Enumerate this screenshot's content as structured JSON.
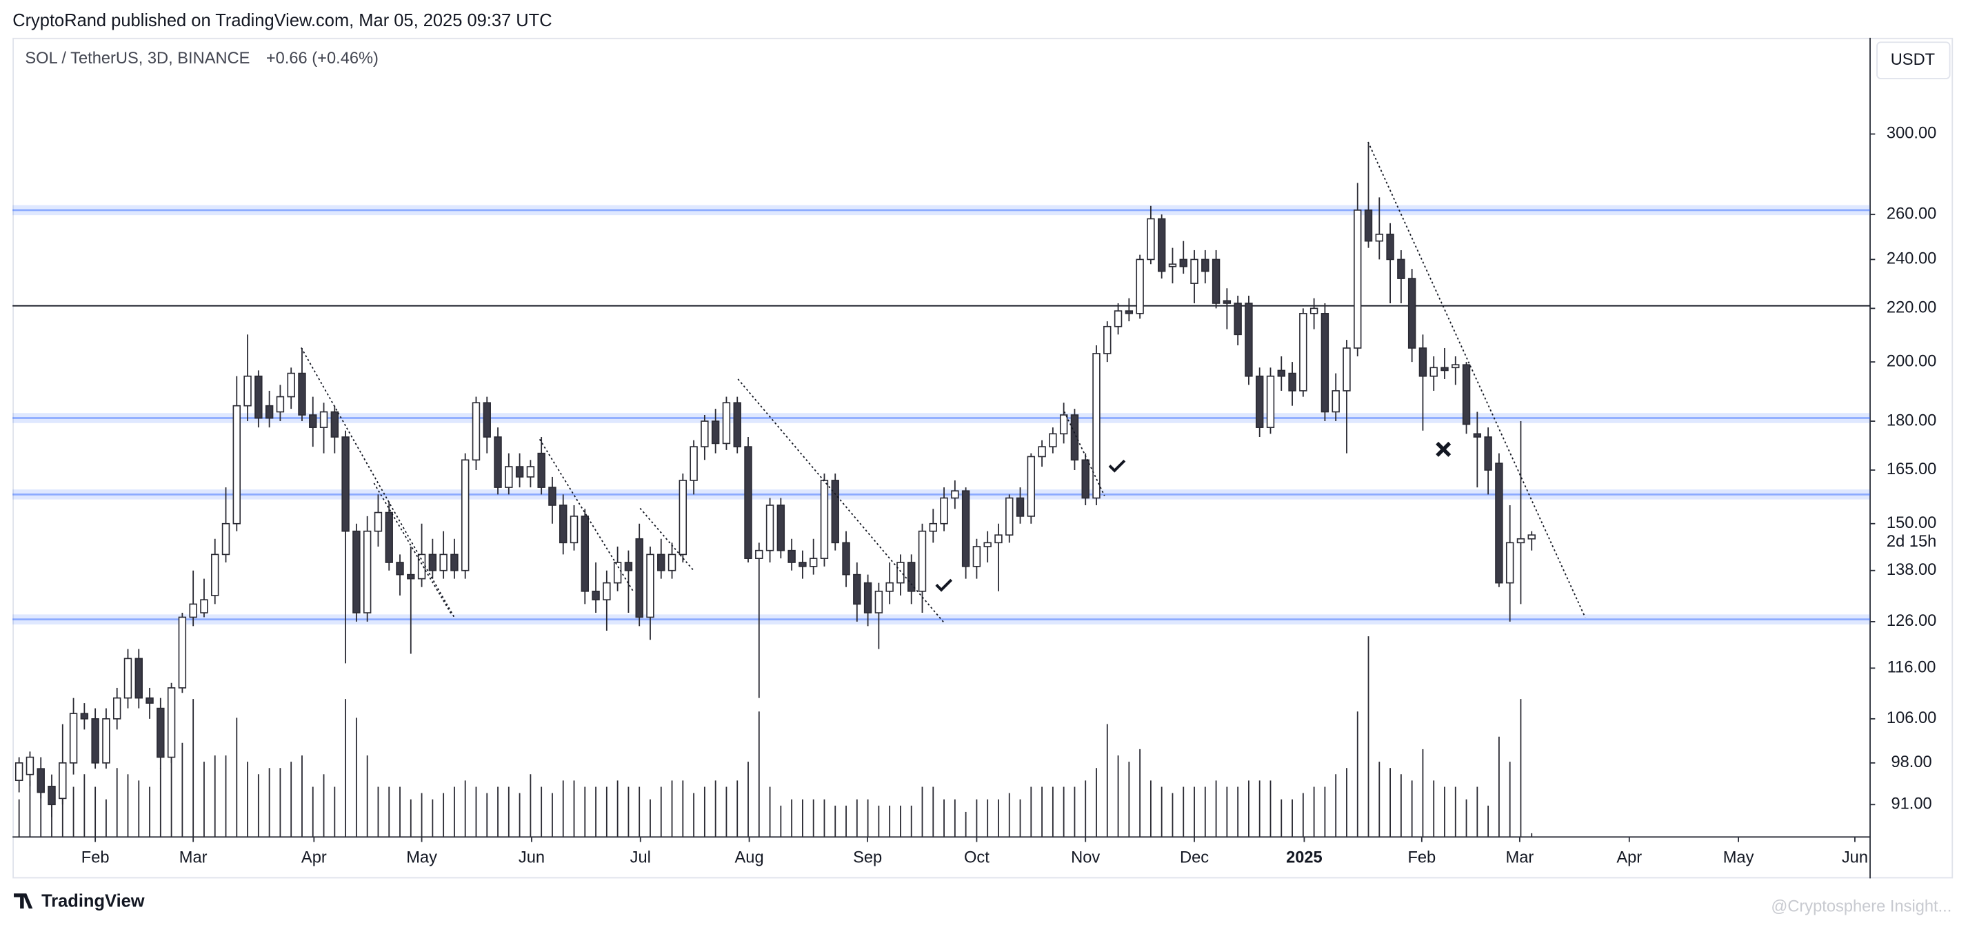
{
  "header": {
    "title": "CryptoRand published on TradingView.com, Mar 05, 2025 09:37 UTC"
  },
  "chart_data": {
    "type": "candlestick",
    "title": "SOL / TetherUS, 3D, BINANCE",
    "change": "+0.66 (+0.46%)",
    "currency": "USDT",
    "countdown": "2d 15h",
    "log_scale": true,
    "grid": false,
    "ylim": [
      85.9,
      356
    ],
    "yticks": [
      {
        "value": 300,
        "label": "300.00"
      },
      {
        "value": 260,
        "label": "260.00"
      },
      {
        "value": 240,
        "label": "240.00"
      },
      {
        "value": 220,
        "label": "220.00"
      },
      {
        "value": 200,
        "label": "200.00"
      },
      {
        "value": 180,
        "label": "180.00"
      },
      {
        "value": 165,
        "label": "165.00"
      },
      {
        "value": 150,
        "label": "150.00"
      },
      {
        "value": 138,
        "label": "138.00"
      },
      {
        "value": 126,
        "label": "126.00"
      },
      {
        "value": 116,
        "label": "116.00"
      },
      {
        "value": 106,
        "label": "106.00"
      },
      {
        "value": 98,
        "label": "98.00"
      },
      {
        "value": 91,
        "label": "91.00"
      }
    ],
    "xlim": [
      -0.6,
      170.1
    ],
    "xticks": [
      {
        "value": 7.0,
        "label": "Feb"
      },
      {
        "value": 16.0,
        "label": "Mar"
      },
      {
        "value": 27.1,
        "label": "Apr"
      },
      {
        "value": 37.0,
        "label": "May"
      },
      {
        "value": 47.1,
        "label": "Jun"
      },
      {
        "value": 57.1,
        "label": "Jul"
      },
      {
        "value": 67.1,
        "label": "Aug"
      },
      {
        "value": 77.97,
        "label": "Sep"
      },
      {
        "value": 88.0,
        "label": "Oct"
      },
      {
        "value": 98.0,
        "label": "Nov"
      },
      {
        "value": 108.0,
        "label": "Dec"
      },
      {
        "value": 118.1,
        "label": "2025"
      },
      {
        "value": 128.9,
        "label": "Feb"
      },
      {
        "value": 137.9,
        "label": "Mar"
      },
      {
        "value": 147.97,
        "label": "Apr"
      },
      {
        "value": 158.0,
        "label": "May"
      },
      {
        "value": 168.7,
        "label": "Jun"
      }
    ],
    "up_color": "#ffffff",
    "down_color": "#3a3a46",
    "outline_color": "#2a2a33",
    "zone_color": "#2962ff",
    "zones": [
      262,
      181,
      158,
      126.5
    ],
    "hline": 221,
    "candles": [
      [
        95,
        99,
        93,
        98
      ],
      [
        96,
        100,
        94,
        99
      ],
      [
        97,
        99,
        92,
        93
      ],
      [
        94,
        96,
        89,
        91
      ],
      [
        92,
        105,
        91,
        98
      ],
      [
        98,
        110,
        96,
        107
      ],
      [
        107,
        109,
        104,
        106
      ],
      [
        106,
        108,
        97,
        98
      ],
      [
        98,
        108,
        97,
        106
      ],
      [
        106,
        112,
        104,
        110
      ],
      [
        110,
        120,
        108,
        118
      ],
      [
        118,
        120,
        108,
        110
      ],
      [
        110,
        112,
        106,
        109
      ],
      [
        108,
        110,
        97,
        99
      ],
      [
        99,
        113,
        98,
        112
      ],
      [
        112,
        128,
        111,
        127
      ],
      [
        127,
        138,
        125,
        130
      ],
      [
        128,
        136,
        127,
        131
      ],
      [
        132,
        146,
        130,
        142
      ],
      [
        142,
        160,
        140,
        150
      ],
      [
        150,
        195,
        148,
        185
      ],
      [
        185,
        210,
        180,
        195
      ],
      [
        195,
        197,
        178,
        181
      ],
      [
        185,
        190,
        178,
        181
      ],
      [
        183,
        192,
        180,
        188
      ],
      [
        188,
        198,
        184,
        196
      ],
      [
        196,
        205,
        180,
        182
      ],
      [
        182,
        188,
        172,
        178
      ],
      [
        178,
        186,
        170,
        183
      ],
      [
        183,
        185,
        170,
        175
      ],
      [
        175,
        177,
        117,
        148
      ],
      [
        148,
        150,
        126,
        128
      ],
      [
        128,
        152,
        126,
        148
      ],
      [
        148,
        158,
        144,
        153
      ],
      [
        153,
        156,
        138,
        140
      ],
      [
        140,
        142,
        132,
        137
      ],
      [
        137,
        144,
        119,
        136
      ],
      [
        136,
        150,
        134,
        142
      ],
      [
        142,
        146,
        136,
        138
      ],
      [
        138,
        148,
        136,
        142
      ],
      [
        142,
        146,
        136,
        138
      ],
      [
        138,
        170,
        136,
        168
      ],
      [
        168,
        188,
        165,
        186
      ],
      [
        186,
        188,
        170,
        175
      ],
      [
        175,
        178,
        158,
        160
      ],
      [
        160,
        170,
        158,
        166
      ],
      [
        166,
        170,
        160,
        163
      ],
      [
        163,
        168,
        160,
        166
      ],
      [
        170,
        175,
        158,
        160
      ],
      [
        160,
        163,
        150,
        155
      ],
      [
        155,
        158,
        142,
        145
      ],
      [
        145,
        155,
        143,
        152
      ],
      [
        152,
        154,
        130,
        133
      ],
      [
        133,
        140,
        128,
        131
      ],
      [
        131,
        138,
        124,
        135
      ],
      [
        135,
        144,
        133,
        140
      ],
      [
        140,
        143,
        128,
        138
      ],
      [
        146,
        150,
        125,
        127
      ],
      [
        127,
        144,
        122,
        142
      ],
      [
        142,
        146,
        136,
        138
      ],
      [
        138,
        145,
        136,
        142
      ],
      [
        142,
        164,
        140,
        162
      ],
      [
        162,
        174,
        158,
        172
      ],
      [
        172,
        182,
        168,
        180
      ],
      [
        180,
        184,
        170,
        173
      ],
      [
        173,
        188,
        171,
        186
      ],
      [
        186,
        188,
        170,
        172
      ],
      [
        172,
        175,
        140,
        141
      ],
      [
        141,
        145,
        110,
        143
      ],
      [
        143,
        157,
        140,
        155
      ],
      [
        155,
        157,
        141,
        143
      ],
      [
        143,
        146,
        138,
        140
      ],
      [
        140,
        143,
        136,
        139
      ],
      [
        139,
        146,
        137,
        141
      ],
      [
        141,
        164,
        139,
        162
      ],
      [
        162,
        164,
        143,
        145
      ],
      [
        145,
        148,
        134,
        137
      ],
      [
        137,
        140,
        126,
        130
      ],
      [
        135,
        137,
        125,
        128
      ],
      [
        128,
        135,
        120,
        133
      ],
      [
        133,
        140,
        130,
        135
      ],
      [
        135,
        142,
        132,
        140
      ],
      [
        140,
        142,
        130,
        133
      ],
      [
        133,
        150,
        128,
        148
      ],
      [
        148,
        154,
        145,
        150
      ],
      [
        150,
        160,
        148,
        157
      ],
      [
        157,
        162,
        154,
        159
      ],
      [
        159,
        160,
        136,
        139
      ],
      [
        139,
        146,
        136,
        144
      ],
      [
        144,
        148,
        140,
        145
      ],
      [
        145,
        150,
        133,
        147
      ],
      [
        147,
        158,
        145,
        157
      ],
      [
        157,
        160,
        150,
        152
      ],
      [
        152,
        170,
        150,
        169
      ],
      [
        169,
        174,
        166,
        172
      ],
      [
        172,
        178,
        170,
        176
      ],
      [
        176,
        186,
        173,
        182
      ],
      [
        182,
        184,
        165,
        168
      ],
      [
        168,
        170,
        155,
        157
      ],
      [
        157,
        206,
        155,
        203
      ],
      [
        203,
        215,
        200,
        213
      ],
      [
        213,
        222,
        210,
        219
      ],
      [
        219,
        224,
        215,
        218
      ],
      [
        218,
        242,
        216,
        240
      ],
      [
        240,
        264,
        238,
        258
      ],
      [
        258,
        260,
        232,
        235
      ],
      [
        237,
        245,
        230,
        238
      ],
      [
        240,
        248,
        234,
        237
      ],
      [
        230,
        244,
        222,
        240
      ],
      [
        240,
        244,
        230,
        235
      ],
      [
        240,
        244,
        220,
        222
      ],
      [
        223,
        228,
        212,
        222
      ],
      [
        222,
        225,
        206,
        210
      ],
      [
        222,
        225,
        192,
        195
      ],
      [
        195,
        198,
        175,
        178
      ],
      [
        178,
        198,
        176,
        195
      ],
      [
        197,
        202,
        190,
        195
      ],
      [
        196,
        200,
        185,
        190
      ],
      [
        190,
        220,
        188,
        218
      ],
      [
        218,
        224,
        212,
        220
      ],
      [
        218,
        222,
        180,
        183
      ],
      [
        183,
        196,
        180,
        190
      ],
      [
        190,
        208,
        170,
        205
      ],
      [
        205,
        275,
        202,
        262
      ],
      [
        262,
        295,
        245,
        248
      ],
      [
        248,
        268,
        240,
        251
      ],
      [
        251,
        256,
        222,
        240
      ],
      [
        240,
        244,
        222,
        232
      ],
      [
        232,
        236,
        200,
        205
      ],
      [
        205,
        210,
        177,
        195
      ],
      [
        195,
        202,
        190,
        198
      ],
      [
        198,
        205,
        194,
        197
      ],
      [
        198,
        202,
        192,
        199
      ],
      [
        199,
        200,
        176,
        179
      ],
      [
        176,
        183,
        160,
        175
      ],
      [
        175,
        178,
        158,
        165
      ],
      [
        167,
        170,
        134,
        135
      ],
      [
        135,
        155,
        126,
        145
      ],
      [
        145,
        180,
        130,
        146
      ],
      [
        146,
        148,
        143,
        147
      ]
    ],
    "volume": [
      30,
      45,
      35,
      40,
      45,
      40,
      50,
      40,
      30,
      55,
      50,
      45,
      40,
      55,
      90,
      75,
      110,
      60,
      65,
      65,
      95,
      60,
      50,
      55,
      55,
      60,
      65,
      40,
      50,
      40,
      110,
      95,
      65,
      40,
      40,
      40,
      30,
      35,
      30,
      35,
      40,
      45,
      40,
      35,
      40,
      40,
      35,
      50,
      40,
      35,
      45,
      45,
      40,
      40,
      40,
      45,
      40,
      40,
      30,
      40,
      45,
      45,
      35,
      40,
      45,
      40,
      45,
      60,
      100,
      40,
      25,
      30,
      30,
      30,
      30,
      25,
      25,
      30,
      30,
      25,
      25,
      25,
      25,
      40,
      40,
      30,
      30,
      20,
      30,
      30,
      30,
      35,
      30,
      40,
      40,
      40,
      40,
      40,
      45,
      55,
      90,
      65,
      60,
      70,
      45,
      40,
      35,
      40,
      40,
      40,
      45,
      40,
      40,
      45,
      45,
      45,
      30,
      30,
      35,
      40,
      40,
      50,
      55,
      100,
      160,
      60,
      55,
      50,
      45,
      70,
      45,
      40,
      40,
      30,
      40,
      25,
      80,
      60,
      110,
      3
    ]
  },
  "footer": {
    "logo": "TradingView",
    "watermark": "@Cryptosphere Insight..."
  }
}
